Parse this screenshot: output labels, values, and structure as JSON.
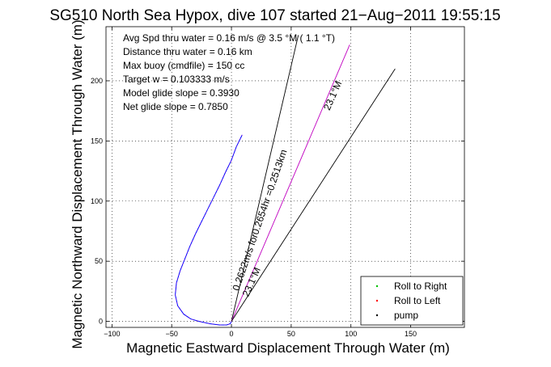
{
  "chart_data": {
    "type": "line",
    "title": "SG510 North Sea Hypox, dive 107 started 21−Aug−2011 19:55:15",
    "xlabel": "Magnetic Eastward Displacement Through Water (m)",
    "ylabel": "Magnetic Northward Displacement Through Water (m)",
    "xlim": [
      -105,
      195
    ],
    "ylim": [
      -5,
      245
    ],
    "xticks": [
      -100,
      -50,
      0,
      50,
      100,
      150
    ],
    "xtick_labels": [
      "−100",
      "−50",
      "0",
      "50",
      "100",
      "150"
    ],
    "yticks": [
      0,
      50,
      100,
      150,
      200
    ],
    "ytick_labels": [
      "0",
      "50",
      "100",
      "150",
      "200"
    ],
    "grid": true,
    "legend_position": "bottom-right",
    "info_lines": [
      "Avg Spd thru water =  0.16 m/s @    3.5    °M (  1.1 °T)",
      "Distance thru water =  0.16 km",
      "Max buoy (cmdfile) = 150 cc",
      "Target w = 0.103333 m/s",
      "Model glide slope = 0.3930",
      "Net glide slope = 0.7850"
    ],
    "series": [
      {
        "name": "track",
        "color": "#0000ff",
        "points": [
          [
            9,
            155
          ],
          [
            4,
            145
          ],
          [
            0,
            134
          ],
          [
            -5,
            124
          ],
          [
            -10,
            113
          ],
          [
            -15,
            103
          ],
          [
            -20,
            93
          ],
          [
            -25,
            83
          ],
          [
            -30,
            73
          ],
          [
            -35,
            62
          ],
          [
            -39,
            52
          ],
          [
            -43,
            42
          ],
          [
            -46,
            32
          ],
          [
            -47,
            22
          ],
          [
            -45,
            13
          ],
          [
            -40,
            6
          ],
          [
            -34,
            2
          ],
          [
            -27,
            0
          ],
          [
            -18,
            -2
          ],
          [
            -10,
            -3
          ],
          [
            -4,
            -3
          ],
          [
            -1,
            -2
          ],
          [
            0,
            0
          ]
        ]
      }
    ],
    "lines": [
      {
        "name": "course-line-1",
        "points": [
          [
            0,
            0
          ],
          [
            56,
            238
          ]
        ],
        "color": "#000000"
      },
      {
        "name": "course-line-2",
        "points": [
          [
            0,
            0
          ],
          [
            99,
            230
          ]
        ],
        "color": "#c000c0"
      },
      {
        "name": "course-line-3",
        "points": [
          [
            0,
            0
          ],
          [
            137,
            210
          ]
        ],
        "color": "#000000"
      }
    ],
    "annotations": [
      {
        "text": "0.2622m/s for0.2654hr =0.2513km",
        "x": 6,
        "y": 25,
        "angle": -71
      },
      {
        "text": "23.1°M",
        "x": 14,
        "y": 20,
        "angle": -66
      },
      {
        "text": "23.1°M",
        "x": 82,
        "y": 175,
        "angle": -66
      }
    ],
    "legend": [
      {
        "label": "Roll to Right",
        "color": "#00c000"
      },
      {
        "label": "Roll to Left",
        "color": "#ff0000"
      },
      {
        "label": "pump",
        "color": "#000000"
      }
    ]
  }
}
